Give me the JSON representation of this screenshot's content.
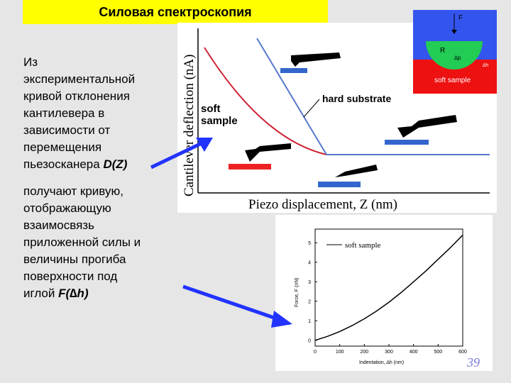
{
  "title": "Силовая спектроскопия",
  "para1": {
    "lines": [
      "Из",
      "экспериментальной",
      "кривой отклонения",
      "кантилевера в",
      "зависимости от",
      "перемещения"
    ],
    "last_prefix": "пьезосканера ",
    "last_formula": "D(Z)"
  },
  "para2": {
    "lines": [
      "получают кривую,",
      "отображающую",
      "взаимосвязь",
      "приложенной силы и",
      "величины прогиба",
      "поверхности под"
    ],
    "last_prefix": "иглой ",
    "last_formula": "F(∆h)"
  },
  "top_chart": {
    "xlabel": "Piezo displacement, Z (nm)",
    "ylabel": "Cantilever deflection (nA)",
    "label_soft": "soft\nsample",
    "label_hard": "hard substrate",
    "colors": {
      "soft": "#cc2233",
      "hard": "#5577cc",
      "surface": "#3366cc"
    }
  },
  "inset": {
    "label_F": "F",
    "label_R": "R",
    "label_dp": "∆p",
    "label_dh": "∆h",
    "label_soft": "soft sample",
    "colors": {
      "bg": "#3355ee",
      "sample": "#ee1111",
      "tip": "#22cc55"
    }
  },
  "bottom_chart": {
    "legend": "soft sample",
    "ylabel": "Force, F (nN)",
    "xlabel": "Indentation, ∆h (nm)",
    "x_ticks": [
      "0",
      "100",
      "200",
      "300",
      "400",
      "500",
      "600"
    ],
    "y_ticks": [
      "0",
      "1",
      "2",
      "3",
      "4",
      "5"
    ],
    "chart_data": {
      "type": "line",
      "x": [
        0,
        50,
        100,
        150,
        200,
        250,
        300,
        350,
        400,
        450,
        500,
        550,
        600
      ],
      "y": [
        0.0,
        0.2,
        0.45,
        0.75,
        1.1,
        1.5,
        1.95,
        2.45,
        3.0,
        3.55,
        4.15,
        4.75,
        5.4
      ],
      "xlim": [
        0,
        600
      ],
      "ylim": [
        -0.3,
        5.7
      ],
      "legend_position": "top-left"
    }
  },
  "slide_number": "39"
}
